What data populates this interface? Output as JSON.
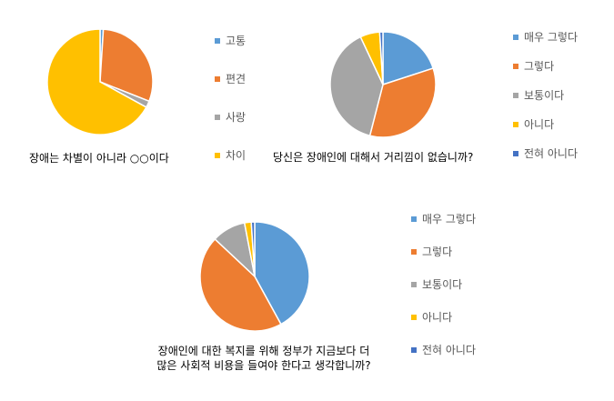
{
  "chart_data": [
    {
      "type": "pie",
      "caption_lines": [
        "장애는 차별이 아니라 ○○이다"
      ],
      "categories": [
        "고통",
        "편견",
        "사랑",
        "차이"
      ],
      "values": [
        1,
        30,
        2,
        67
      ],
      "colors": [
        "#5B9BD5",
        "#ED7D31",
        "#A5A5A5",
        "#FFC000"
      ],
      "legend_position": "right"
    },
    {
      "type": "pie",
      "caption_lines": [
        "당신은 장애인에 대해서 거리낌이 없습니까?"
      ],
      "categories": [
        "매우 그렇다",
        "그렇다",
        "보통이다",
        "아니다",
        "전혀 아니다"
      ],
      "values": [
        20,
        34,
        39,
        6,
        1
      ],
      "colors": [
        "#5B9BD5",
        "#ED7D31",
        "#A5A5A5",
        "#FFC000",
        "#4472C4"
      ],
      "legend_position": "right"
    },
    {
      "type": "pie",
      "caption_lines": [
        "장애인에 대한 복지를 위해 정부가 지금보다 더",
        "많은 사회적 비용을 들여야 한다고 생각합니까?"
      ],
      "categories": [
        "매우 그렇다",
        "그렇다",
        "보통이다",
        "아니다",
        "전혀 아니다"
      ],
      "values": [
        42,
        45,
        10,
        2,
        1
      ],
      "colors": [
        "#5B9BD5",
        "#ED7D31",
        "#A5A5A5",
        "#FFC000",
        "#4472C4"
      ],
      "legend_position": "right"
    }
  ]
}
